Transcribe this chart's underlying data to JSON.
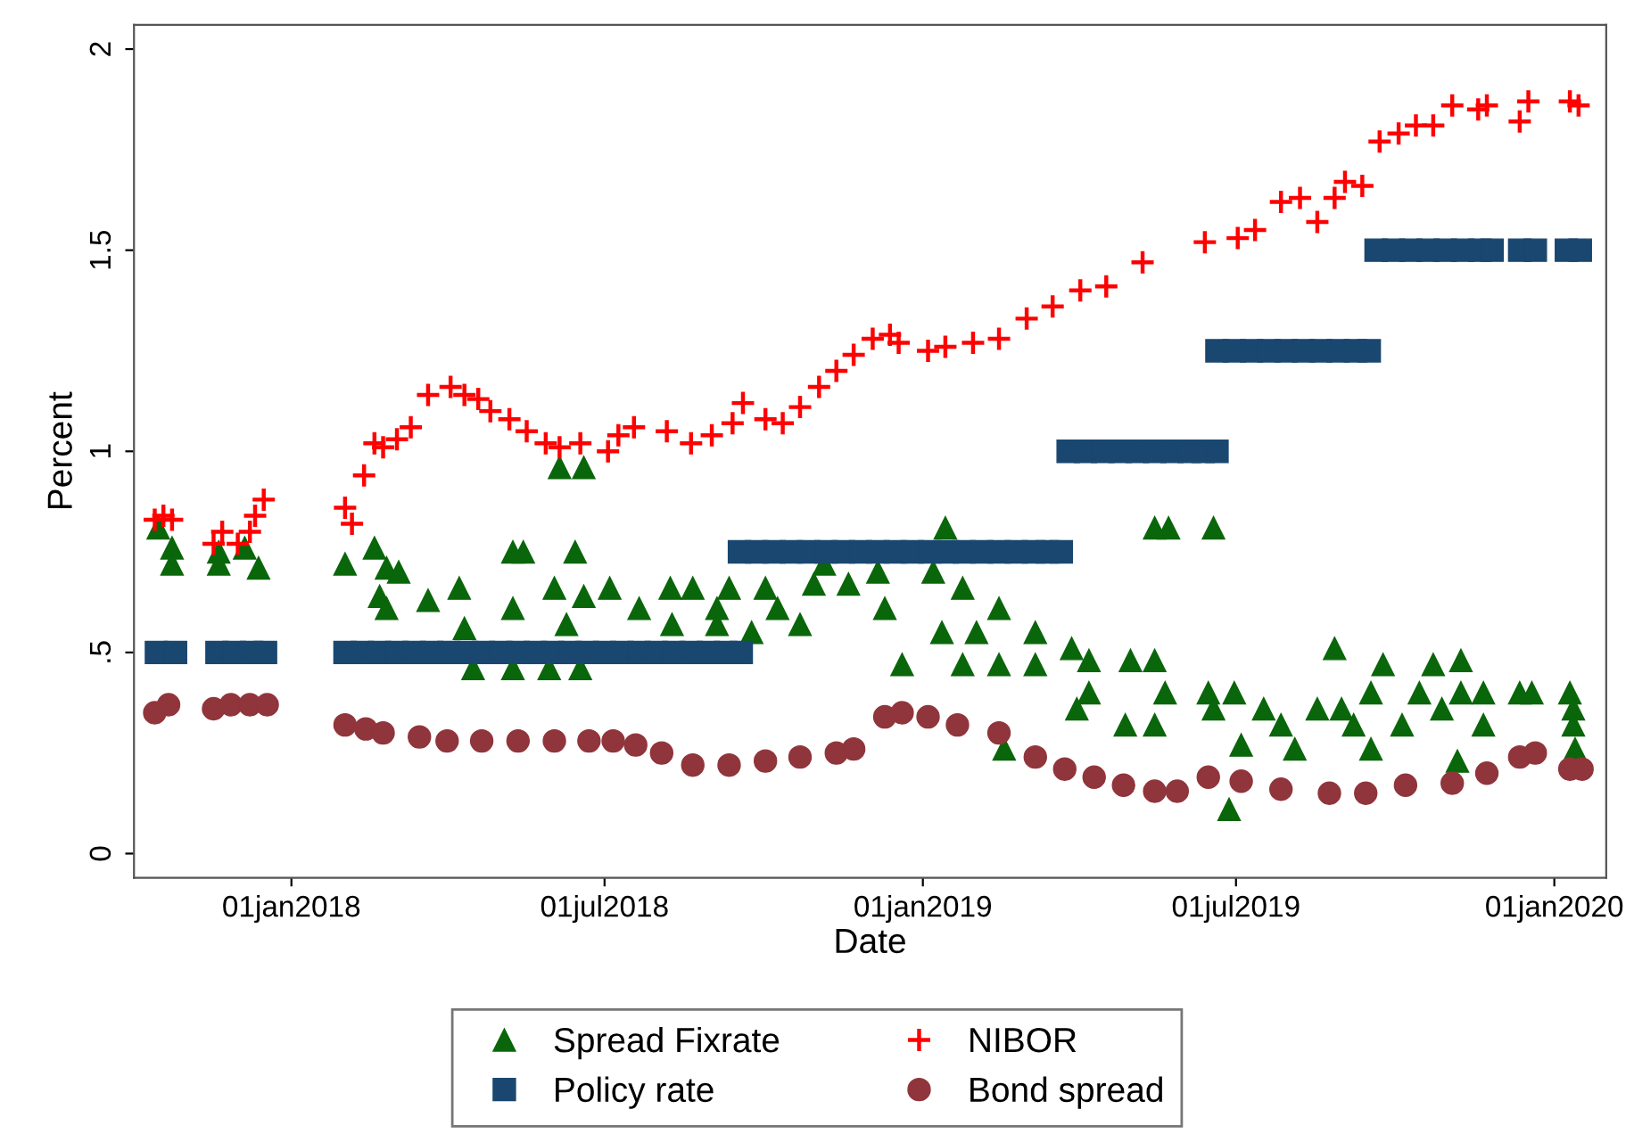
{
  "chart_data": {
    "type": "scatter",
    "xlabel": "Date",
    "ylabel": "Percent",
    "xlim": [
      "2017-10-02",
      "2020-01-31"
    ],
    "ylim": [
      -0.06,
      2.06
    ],
    "xticks": [
      {
        "value": "2018-01-01",
        "label": "01jan2018"
      },
      {
        "value": "2018-07-01",
        "label": "01jul2018"
      },
      {
        "value": "2019-01-01",
        "label": "01jan2019"
      },
      {
        "value": "2019-07-01",
        "label": "01jul2019"
      },
      {
        "value": "2020-01-01",
        "label": "01jan2020"
      }
    ],
    "yticks": [
      0,
      {
        "value": 0.5,
        "label": ".5"
      },
      1,
      1.5,
      2
    ],
    "grid": false,
    "legend": "bottom",
    "series": [
      {
        "name": "Spread Fixrate",
        "color": "#0a660a",
        "marker": "triangle",
        "x": [
          "2017-10-16",
          "2017-10-24",
          "2017-10-24",
          "2017-11-20",
          "2017-11-20",
          "2017-12-13",
          "2017-12-05",
          "2018-02-01",
          "2018-02-18",
          "2018-02-25",
          "2018-03-04",
          "2018-02-21",
          "2018-02-25",
          "2018-03-21",
          "2018-04-08",
          "2018-04-11",
          "2018-04-16",
          "2018-05-09",
          "2018-05-15",
          "2018-05-09",
          "2018-05-09",
          "2018-05-30",
          "2018-06-02",
          "2018-06-05",
          "2018-06-19",
          "2018-06-14",
          "2018-06-09",
          "2018-06-17",
          "2018-06-19",
          "2018-07-04",
          "2018-07-21",
          "2018-08-08",
          "2018-08-09",
          "2018-08-21",
          "2018-09-04",
          "2018-09-11",
          "2018-09-04",
          "2018-09-24",
          "2018-10-02",
          "2018-10-09",
          "2018-10-22",
          "2018-10-30",
          "2018-11-05",
          "2018-11-19",
          "2018-12-06",
          "2018-12-10",
          "2018-12-20",
          "2019-01-07",
          "2019-01-14",
          "2019-01-12",
          "2019-01-24",
          "2019-02-01",
          "2019-01-24",
          "2019-02-14",
          "2019-02-14",
          "2019-02-17",
          "2019-03-07",
          "2019-03-07",
          "2019-03-28",
          "2019-04-07",
          "2019-04-07",
          "2019-03-31",
          "2019-05-01",
          "2019-04-28",
          "2019-05-15",
          "2019-05-23",
          "2019-05-15",
          "2019-05-21",
          "2019-05-15",
          "2019-06-18",
          "2019-06-15",
          "2019-06-18",
          "2019-06-30",
          "2019-07-04",
          "2019-06-27",
          "2019-07-17",
          "2019-07-27",
          "2019-08-04",
          "2019-08-17",
          "2019-08-27",
          "2019-08-31",
          "2019-09-07",
          "2019-09-17",
          "2019-09-24",
          "2019-09-17",
          "2019-10-05",
          "2019-10-15",
          "2019-10-23",
          "2019-10-28",
          "2019-11-08",
          "2019-11-08",
          "2019-11-21",
          "2019-11-21",
          "2019-11-06",
          "2019-12-12",
          "2019-12-19",
          "2020-01-10",
          "2020-01-12",
          "2020-01-12",
          "2020-01-13"
        ],
        "values": [
          0.81,
          0.76,
          0.72,
          0.75,
          0.72,
          0.71,
          0.76,
          0.72,
          0.76,
          0.71,
          0.7,
          0.64,
          0.61,
          0.63,
          0.66,
          0.56,
          0.46,
          0.75,
          0.75,
          0.61,
          0.46,
          0.46,
          0.66,
          0.96,
          0.96,
          0.75,
          0.57,
          0.46,
          0.64,
          0.66,
          0.61,
          0.66,
          0.57,
          0.66,
          0.61,
          0.66,
          0.57,
          0.55,
          0.66,
          0.61,
          0.57,
          0.67,
          0.72,
          0.67,
          0.7,
          0.61,
          0.47,
          0.7,
          0.81,
          0.55,
          0.66,
          0.55,
          0.47,
          0.61,
          0.47,
          0.26,
          0.55,
          0.47,
          0.51,
          0.48,
          0.4,
          0.36,
          0.48,
          0.32,
          0.81,
          0.81,
          0.48,
          0.4,
          0.32,
          0.81,
          0.4,
          0.36,
          0.4,
          0.27,
          0.11,
          0.36,
          0.32,
          0.26,
          0.36,
          0.51,
          0.36,
          0.32,
          0.4,
          0.47,
          0.26,
          0.32,
          0.4,
          0.47,
          0.36,
          0.48,
          0.4,
          0.4,
          0.32,
          0.23,
          0.4,
          0.4,
          0.4,
          0.36,
          0.32,
          0.26
        ]
      },
      {
        "name": "Policy rate",
        "color": "#1a476f",
        "marker": "square",
        "x": [
          "2017-10-15",
          "2017-10-26",
          "2017-11-19",
          "2017-11-29",
          "2017-12-09",
          "2017-12-17",
          "2018-02-01",
          "2018-02-11",
          "2018-02-21",
          "2018-03-03",
          "2018-03-13",
          "2018-03-23",
          "2018-04-02",
          "2018-04-12",
          "2018-04-22",
          "2018-05-02",
          "2018-05-12",
          "2018-05-22",
          "2018-06-01",
          "2018-06-11",
          "2018-06-21",
          "2018-07-01",
          "2018-07-11",
          "2018-07-21",
          "2018-07-31",
          "2018-08-10",
          "2018-08-20",
          "2018-08-30",
          "2018-09-09",
          "2018-09-18",
          "2018-09-17",
          "2018-09-27",
          "2018-10-07",
          "2018-10-17",
          "2018-10-27",
          "2018-11-06",
          "2018-11-16",
          "2018-11-26",
          "2018-12-06",
          "2018-12-16",
          "2018-12-26",
          "2019-01-05",
          "2019-01-15",
          "2019-01-25",
          "2019-02-04",
          "2019-02-14",
          "2019-02-24",
          "2019-03-06",
          "2019-03-14",
          "2019-03-22",
          "2019-03-26",
          "2019-04-05",
          "2019-04-15",
          "2019-04-25",
          "2019-05-05",
          "2019-05-15",
          "2019-05-25",
          "2019-06-04",
          "2019-06-12",
          "2019-06-20",
          "2019-06-20",
          "2019-06-30",
          "2019-07-10",
          "2019-07-20",
          "2019-07-30",
          "2019-08-09",
          "2019-08-19",
          "2019-08-29",
          "2019-09-08",
          "2019-09-16",
          "2019-09-20",
          "2019-09-30",
          "2019-10-10",
          "2019-10-20",
          "2019-10-30",
          "2019-11-09",
          "2019-11-19",
          "2019-11-26",
          "2019-12-12",
          "2019-12-21",
          "2020-01-08",
          "2020-01-16"
        ],
        "values": [
          0.5,
          0.5,
          0.5,
          0.5,
          0.5,
          0.5,
          0.5,
          0.5,
          0.5,
          0.5,
          0.5,
          0.5,
          0.5,
          0.5,
          0.5,
          0.5,
          0.5,
          0.5,
          0.5,
          0.5,
          0.5,
          0.5,
          0.5,
          0.5,
          0.5,
          0.5,
          0.5,
          0.5,
          0.5,
          0.5,
          0.75,
          0.75,
          0.75,
          0.75,
          0.75,
          0.75,
          0.75,
          0.75,
          0.75,
          0.75,
          0.75,
          0.75,
          0.75,
          0.75,
          0.75,
          0.75,
          0.75,
          0.75,
          0.75,
          0.75,
          1.0,
          1.0,
          1.0,
          1.0,
          1.0,
          1.0,
          1.0,
          1.0,
          1.0,
          1.0,
          1.25,
          1.25,
          1.25,
          1.25,
          1.25,
          1.25,
          1.25,
          1.25,
          1.25,
          1.25,
          1.5,
          1.5,
          1.5,
          1.5,
          1.5,
          1.5,
          1.5,
          1.5,
          1.5,
          1.5,
          1.5,
          1.5
        ]
      },
      {
        "name": "NIBOR",
        "color": "#ff0000",
        "marker": "cross",
        "x": [
          "2017-10-14",
          "2017-10-19",
          "2017-10-24",
          "2017-11-17",
          "2017-11-22",
          "2017-12-01",
          "2017-12-08",
          "2017-12-11",
          "2017-12-16",
          "2018-02-01",
          "2018-02-05",
          "2018-02-12",
          "2018-02-18",
          "2018-02-23",
          "2018-03-03",
          "2018-03-11",
          "2018-03-21",
          "2018-04-03",
          "2018-04-11",
          "2018-04-19",
          "2018-04-26",
          "2018-05-07",
          "2018-05-17",
          "2018-05-28",
          "2018-06-05",
          "2018-06-17",
          "2018-07-03",
          "2018-07-09",
          "2018-07-18",
          "2018-08-06",
          "2018-08-20",
          "2018-09-01",
          "2018-09-13",
          "2018-09-19",
          "2018-10-02",
          "2018-10-12",
          "2018-10-22",
          "2018-11-02",
          "2018-11-12",
          "2018-11-22",
          "2018-12-03",
          "2018-12-13",
          "2018-12-18",
          "2019-01-04",
          "2019-01-14",
          "2019-01-30",
          "2019-02-14",
          "2019-03-02",
          "2019-03-17",
          "2019-04-02",
          "2019-04-17",
          "2019-05-08",
          "2019-06-13",
          "2019-07-02",
          "2019-07-12",
          "2019-07-27",
          "2019-08-07",
          "2019-08-17",
          "2019-08-27",
          "2019-09-02",
          "2019-09-12",
          "2019-09-22",
          "2019-10-03",
          "2019-10-13",
          "2019-10-23",
          "2019-11-03",
          "2019-11-18",
          "2019-11-23",
          "2019-12-12",
          "2019-12-17",
          "2020-01-10",
          "2020-01-15"
        ],
        "values": [
          0.83,
          0.84,
          0.83,
          0.77,
          0.8,
          0.77,
          0.8,
          0.84,
          0.88,
          0.86,
          0.82,
          0.94,
          1.02,
          1.01,
          1.03,
          1.06,
          1.14,
          1.16,
          1.14,
          1.13,
          1.1,
          1.08,
          1.05,
          1.02,
          1.01,
          1.02,
          1.0,
          1.04,
          1.06,
          1.05,
          1.02,
          1.04,
          1.07,
          1.12,
          1.08,
          1.07,
          1.11,
          1.16,
          1.2,
          1.24,
          1.28,
          1.29,
          1.27,
          1.25,
          1.26,
          1.27,
          1.28,
          1.33,
          1.36,
          1.4,
          1.41,
          1.47,
          1.52,
          1.53,
          1.55,
          1.62,
          1.63,
          1.57,
          1.63,
          1.67,
          1.66,
          1.77,
          1.79,
          1.81,
          1.81,
          1.86,
          1.85,
          1.86,
          1.82,
          1.87,
          1.87,
          1.86
        ]
      },
      {
        "name": "Bond spread",
        "color": "#90353b",
        "marker": "circle",
        "x": [
          "2017-10-14",
          "2017-10-22",
          "2017-11-17",
          "2017-11-27",
          "2017-12-08",
          "2017-12-18",
          "2018-02-01",
          "2018-02-13",
          "2018-02-23",
          "2018-03-16",
          "2018-04-01",
          "2018-04-21",
          "2018-05-12",
          "2018-06-02",
          "2018-06-22",
          "2018-07-06",
          "2018-07-19",
          "2018-08-03",
          "2018-08-21",
          "2018-09-11",
          "2018-10-02",
          "2018-10-22",
          "2018-11-12",
          "2018-11-22",
          "2018-12-10",
          "2018-12-20",
          "2019-01-04",
          "2019-01-21",
          "2019-02-14",
          "2019-03-07",
          "2019-03-24",
          "2019-04-10",
          "2019-04-27",
          "2019-05-15",
          "2019-05-28",
          "2019-06-15",
          "2019-07-04",
          "2019-07-27",
          "2019-08-24",
          "2019-09-14",
          "2019-10-07",
          "2019-11-03",
          "2019-11-23",
          "2019-12-12",
          "2019-12-21",
          "2020-01-10",
          "2020-01-17"
        ],
        "values": [
          0.35,
          0.37,
          0.36,
          0.37,
          0.37,
          0.37,
          0.32,
          0.31,
          0.3,
          0.29,
          0.28,
          0.28,
          0.28,
          0.28,
          0.28,
          0.28,
          0.27,
          0.25,
          0.22,
          0.22,
          0.23,
          0.24,
          0.25,
          0.26,
          0.34,
          0.35,
          0.34,
          0.32,
          0.3,
          0.24,
          0.21,
          0.19,
          0.17,
          0.155,
          0.155,
          0.19,
          0.18,
          0.16,
          0.15,
          0.15,
          0.17,
          0.175,
          0.2,
          0.24,
          0.25,
          0.21,
          0.21
        ]
      }
    ]
  }
}
